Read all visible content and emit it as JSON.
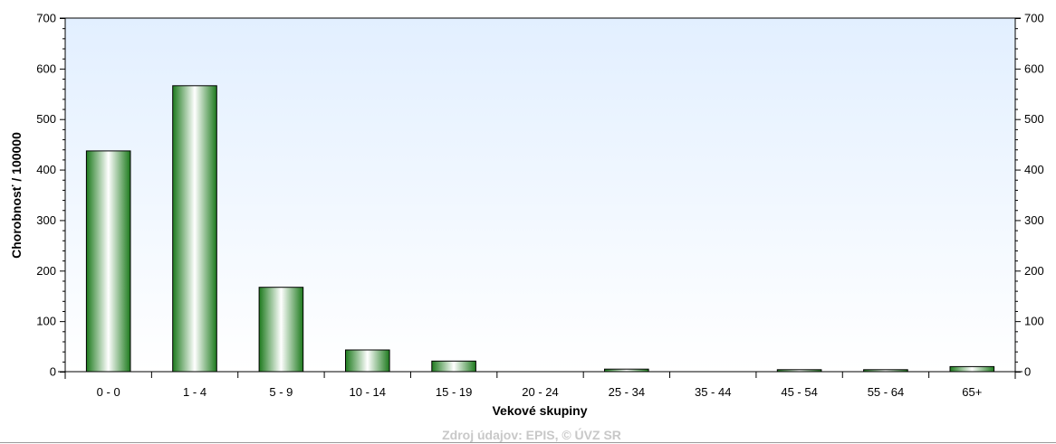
{
  "chart_data": {
    "type": "bar",
    "categories": [
      "0 - 0",
      "1 - 4",
      "5 - 9",
      "10 - 14",
      "15 - 19",
      "20 - 24",
      "25 - 34",
      "35 - 44",
      "45 - 54",
      "55 - 64",
      "65+"
    ],
    "values": [
      437,
      566,
      167,
      43,
      21,
      0,
      5,
      0,
      4,
      4,
      10
    ],
    "title": "",
    "xlabel": "Vekové skupiny",
    "ylabel": "Chorobnosť / 100000",
    "ylim": [
      0,
      700
    ],
    "yticks": [
      0,
      100,
      200,
      300,
      400,
      500,
      600,
      700
    ],
    "y_axis_right": true,
    "grid": false,
    "legend": "none",
    "colors": {
      "bar_dark": "#1d7a1d",
      "bar_light": "#ffffff",
      "bar_border": "#000000",
      "plot_top": "#e2efff",
      "plot_bottom": "#ffffff"
    }
  },
  "source_text": "Zdroj údajov: EPIS, © ÚVZ SR"
}
